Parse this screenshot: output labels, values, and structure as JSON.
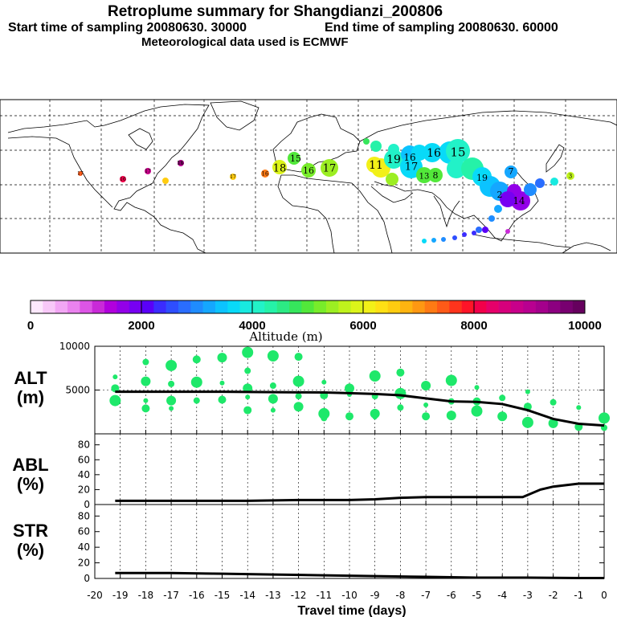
{
  "header": {
    "title": "Retroplume summary for Shangdianzi_200806",
    "start_time": "Start time of sampling 20080630. 30000",
    "end_time": "End time of sampling 20080630. 60000",
    "met": "Meteorological data used is ECMWF"
  },
  "colorbar": {
    "ticks": [
      "0",
      "2000",
      "4000",
      "6000",
      "8000",
      "10000"
    ],
    "label": "Altitude (m)",
    "colors": [
      "#fde8fd",
      "#f8c8f8",
      "#f2a6f4",
      "#ea82ee",
      "#dd55e6",
      "#c92ad8",
      "#b100dd",
      "#9300e8",
      "#7700f2",
      "#5a00f8",
      "#3b2cff",
      "#2e4eff",
      "#2a6dff",
      "#1f8cff",
      "#15a7ff",
      "#0cc3ff",
      "#08daf8",
      "#18eae0",
      "#22f2c8",
      "#25f2a8",
      "#2cea84",
      "#36e65c",
      "#52e83a",
      "#78ec2a",
      "#9cee22",
      "#bff21c",
      "#dcf41a",
      "#f2f018",
      "#ffe014",
      "#ffcc10",
      "#ffb410",
      "#ff9812",
      "#ff7a14",
      "#ff5a18",
      "#ff341c",
      "#ff1428",
      "#f2004a",
      "#e6006a",
      "#d6007c",
      "#c8008a",
      "#b80090",
      "#a4008c",
      "#8c0080",
      "#780070",
      "#66005e"
    ]
  },
  "map": {
    "labels": [
      {
        "t": "17",
        "c": "#ff5a18"
      },
      {
        "t": "16",
        "c": "#f2004a"
      },
      {
        "t": "17",
        "c": "#c8008a"
      },
      {
        "t": "16",
        "c": "#b80090"
      },
      {
        "t": "15",
        "c": "#c929d8"
      },
      {
        "t": "17",
        "c": "#ffcc10"
      },
      {
        "t": "16",
        "c": "#ff7a14"
      },
      {
        "t": "18",
        "c": "#dcf41a"
      },
      {
        "t": "15",
        "c": "#52e83a"
      },
      {
        "t": "16",
        "c": "#78ec2a"
      },
      {
        "t": "17",
        "c": "#9cee22"
      },
      {
        "t": "11",
        "c": "#f2f018"
      },
      {
        "t": "19",
        "c": "#22f2c8"
      },
      {
        "t": "16",
        "c": "#25f2a8"
      },
      {
        "t": "17",
        "c": "#08daf8"
      },
      {
        "t": "16",
        "c": "#52e83a"
      },
      {
        "t": "15",
        "c": "#0cc3ff"
      },
      {
        "t": "13",
        "c": "#15a7ff"
      },
      {
        "t": "8",
        "c": "#36e65c"
      },
      {
        "t": "7",
        "c": "#52e83a"
      },
      {
        "t": "14",
        "c": "#1f8cff"
      },
      {
        "t": "2",
        "c": "#9300e8"
      },
      {
        "t": "3",
        "c": "#3b2cff"
      },
      {
        "t": "19",
        "c": "#52e83a"
      },
      {
        "t": "12",
        "c": "#1f8cff"
      }
    ]
  },
  "panels": {
    "alt": {
      "label1": "ALT",
      "label2": "(m)"
    },
    "abl": {
      "label1": "ABL",
      "label2": "(%)"
    },
    "str": {
      "label1": "STR",
      "label2": "(%)"
    }
  },
  "chart_data": [
    {
      "type": "line",
      "title": "ALT (m)",
      "xlabel": "Travel time (days)",
      "ylabel": "ALT (m)",
      "xlim": [
        -20,
        0
      ],
      "ylim": [
        0,
        10000
      ],
      "yticks": [
        "5000",
        "10000"
      ],
      "x": [
        -19.2,
        -18,
        -17,
        -16,
        -15,
        -14,
        -13,
        -12,
        -11,
        -10,
        -9,
        -8,
        -7,
        -6,
        -5,
        -4,
        -3,
        -2,
        -1,
        0
      ],
      "series": [
        {
          "name": "mean altitude",
          "values": [
            4800,
            4800,
            4800,
            4800,
            4800,
            4780,
            4760,
            4740,
            4720,
            4650,
            4550,
            4400,
            4050,
            3700,
            3650,
            3400,
            2700,
            1700,
            1150,
            950
          ]
        }
      ],
      "scatter": [
        {
          "x": -19.2,
          "y": 6500
        },
        {
          "x": -19.2,
          "y": 5200
        },
        {
          "x": -19.2,
          "y": 3800
        },
        {
          "x": -18,
          "y": 8200
        },
        {
          "x": -18,
          "y": 6000
        },
        {
          "x": -18,
          "y": 3800
        },
        {
          "x": -18,
          "y": 2900
        },
        {
          "x": -17,
          "y": 7800
        },
        {
          "x": -17,
          "y": 5700
        },
        {
          "x": -17,
          "y": 3800
        },
        {
          "x": -17,
          "y": 2900
        },
        {
          "x": -16,
          "y": 8500
        },
        {
          "x": -16,
          "y": 5900
        },
        {
          "x": -16,
          "y": 3800
        },
        {
          "x": -15,
          "y": 8700
        },
        {
          "x": -15,
          "y": 5800
        },
        {
          "x": -15,
          "y": 3900
        },
        {
          "x": -14,
          "y": 9300
        },
        {
          "x": -14,
          "y": 7200
        },
        {
          "x": -14,
          "y": 5200
        },
        {
          "x": -14,
          "y": 4200
        },
        {
          "x": -14,
          "y": 2700
        },
        {
          "x": -13,
          "y": 8900
        },
        {
          "x": -13,
          "y": 5500
        },
        {
          "x": -13,
          "y": 4000
        },
        {
          "x": -13,
          "y": 2700
        },
        {
          "x": -12,
          "y": 8800
        },
        {
          "x": -12,
          "y": 6000
        },
        {
          "x": -12,
          "y": 4300
        },
        {
          "x": -12,
          "y": 3100
        },
        {
          "x": -11,
          "y": 5900
        },
        {
          "x": -11,
          "y": 4400
        },
        {
          "x": -11,
          "y": 2300
        },
        {
          "x": -11,
          "y": 1800
        },
        {
          "x": -10,
          "y": 5200
        },
        {
          "x": -10,
          "y": 4500
        },
        {
          "x": -10,
          "y": 2000
        },
        {
          "x": -9,
          "y": 6600
        },
        {
          "x": -9,
          "y": 4300
        },
        {
          "x": -9,
          "y": 2300
        },
        {
          "x": -9,
          "y": 1900
        },
        {
          "x": -8,
          "y": 7000
        },
        {
          "x": -8,
          "y": 4600
        },
        {
          "x": -8,
          "y": 3000
        },
        {
          "x": -7,
          "y": 5500
        },
        {
          "x": -7,
          "y": 3300
        },
        {
          "x": -7,
          "y": 2000
        },
        {
          "x": -6,
          "y": 6100
        },
        {
          "x": -6,
          "y": 3700
        },
        {
          "x": -6,
          "y": 2100
        },
        {
          "x": -5,
          "y": 5300
        },
        {
          "x": -5,
          "y": 3700
        },
        {
          "x": -5,
          "y": 2600
        },
        {
          "x": -4,
          "y": 4100
        },
        {
          "x": -4,
          "y": 2000
        },
        {
          "x": -3,
          "y": 4800
        },
        {
          "x": -3,
          "y": 3100
        },
        {
          "x": -3,
          "y": 1300
        },
        {
          "x": -2,
          "y": 3600
        },
        {
          "x": -2,
          "y": 1200
        },
        {
          "x": -1,
          "y": 3000
        },
        {
          "x": -1,
          "y": 800
        },
        {
          "x": 0,
          "y": 1800
        },
        {
          "x": 0,
          "y": 700
        }
      ]
    },
    {
      "type": "line",
      "title": "ABL (%)",
      "ylabel": "ABL (%)",
      "xlim": [
        -20,
        0
      ],
      "ylim": [
        0,
        90
      ],
      "yticks": [
        "0",
        "20",
        "40",
        "60",
        "80"
      ],
      "x": [
        -19.2,
        -18,
        -16,
        -14,
        -12,
        -10,
        -9,
        -8,
        -7,
        -6,
        -5,
        -4,
        -3.2,
        -2.5,
        -2,
        -1,
        0
      ],
      "series": [
        {
          "name": "ABL",
          "values": [
            5,
            5,
            5,
            5,
            6,
            6,
            7,
            9,
            10,
            10,
            10,
            10,
            10,
            20,
            24,
            28,
            28
          ]
        }
      ]
    },
    {
      "type": "line",
      "title": "STR (%)",
      "ylabel": "STR (%)",
      "xlim": [
        -20,
        0
      ],
      "ylim": [
        0,
        90
      ],
      "yticks": [
        "0",
        "20",
        "40",
        "60",
        "80"
      ],
      "xticks": [
        "-20",
        "-19",
        "-18",
        "-17",
        "-16",
        "-15",
        "-14",
        "-13",
        "-12",
        "-11",
        "-10",
        "-9",
        "-8",
        "-7",
        "-6",
        "-5",
        "-4",
        "-3",
        "-2",
        "-1",
        "0"
      ],
      "x": [
        -19.2,
        -17,
        -15,
        -13,
        -11,
        -9,
        -7,
        -5,
        -3,
        -1,
        0
      ],
      "series": [
        {
          "name": "STR",
          "values": [
            7,
            7,
            6,
            5,
            4,
            3,
            2,
            1,
            1,
            0.5,
            0.5
          ]
        }
      ]
    }
  ]
}
